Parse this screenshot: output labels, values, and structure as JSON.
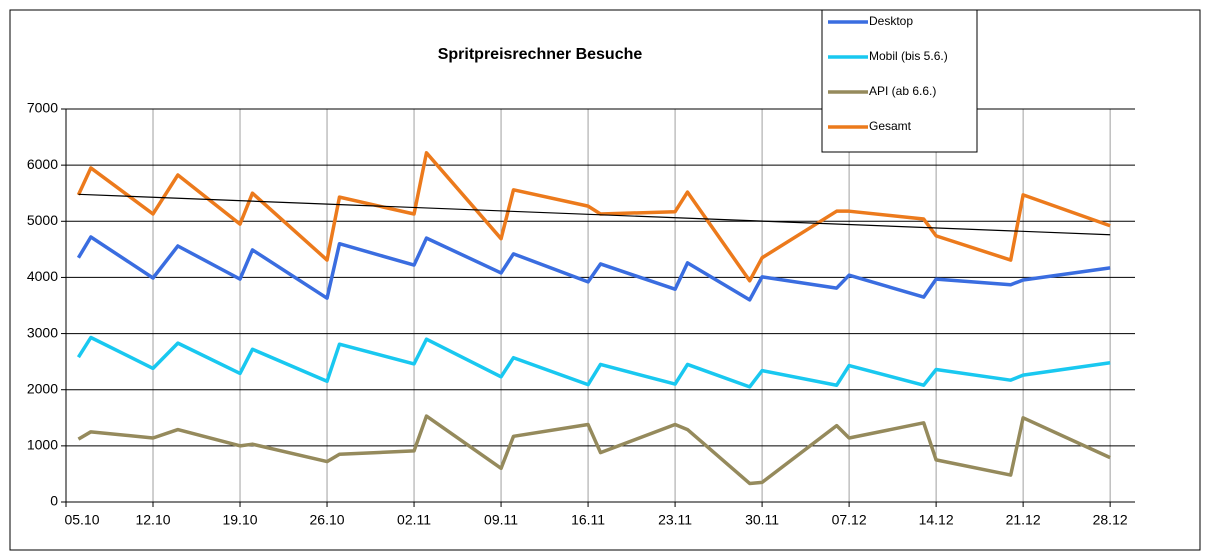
{
  "chart_data": {
    "type": "line",
    "title": "Spritpreisrechner Besuche",
    "x": [
      1,
      2,
      7,
      9,
      14,
      15,
      21,
      22,
      28,
      29,
      35,
      36,
      42,
      43,
      49,
      50,
      55,
      56,
      62,
      63,
      69,
      70,
      76,
      77,
      84
    ],
    "xlim": [
      0,
      86
    ],
    "xticks": [
      {
        "value": 0,
        "label": "05.10"
      },
      {
        "value": 7,
        "label": "12.10"
      },
      {
        "value": 14,
        "label": "19.10"
      },
      {
        "value": 21,
        "label": "26.10"
      },
      {
        "value": 28,
        "label": "02.11"
      },
      {
        "value": 35,
        "label": "09.11"
      },
      {
        "value": 42,
        "label": "16.11"
      },
      {
        "value": 49,
        "label": "23.11"
      },
      {
        "value": 56,
        "label": "30.11"
      },
      {
        "value": 63,
        "label": "07.12"
      },
      {
        "value": 70,
        "label": "14.12"
      },
      {
        "value": 77,
        "label": "21.12"
      },
      {
        "value": 84,
        "label": "28.12"
      }
    ],
    "ylim": [
      0,
      7000
    ],
    "yticks": [
      0,
      1000,
      2000,
      3000,
      4000,
      5000,
      6000,
      7000
    ],
    "grid": true,
    "series": [
      {
        "name": "Desktop",
        "color": "#3a6de0",
        "values": [
          4350,
          4720,
          3990,
          4560,
          3970,
          4490,
          3630,
          4600,
          4220,
          4700,
          4080,
          4420,
          3920,
          4240,
          3790,
          4260,
          3600,
          4010,
          3810,
          4040,
          3650,
          3970,
          3870,
          3955,
          4170
        ]
      },
      {
        "name": "Mobil (bis 5.6.)",
        "color": "#19c8f0",
        "values": [
          2580,
          2930,
          2380,
          2830,
          2290,
          2720,
          2150,
          2810,
          2460,
          2900,
          2230,
          2570,
          2090,
          2450,
          2100,
          2450,
          2050,
          2340,
          2080,
          2430,
          2080,
          2360,
          2170,
          2260,
          2480
        ]
      },
      {
        "name": "API (ab 6.6.)",
        "color": "#958a5c",
        "values": [
          1120,
          1250,
          1140,
          1290,
          1000,
          1030,
          720,
          850,
          910,
          1530,
          600,
          1170,
          1380,
          880,
          1380,
          1290,
          330,
          350,
          1360,
          1140,
          1410,
          750,
          480,
          1500,
          790
        ]
      },
      {
        "name": "Gesamt",
        "color": "#ec7a1c",
        "values": [
          5470,
          5950,
          5130,
          5825,
          4950,
          5500,
          4310,
          5430,
          5130,
          6220,
          4690,
          5560,
          5270,
          5130,
          5170,
          5520,
          3940,
          4350,
          5180,
          5180,
          5040,
          4740,
          4310,
          5470,
          4920
        ]
      }
    ],
    "trend": {
      "x": [
        1,
        84
      ],
      "values": [
        5480,
        4760
      ],
      "color": "#000000"
    }
  }
}
